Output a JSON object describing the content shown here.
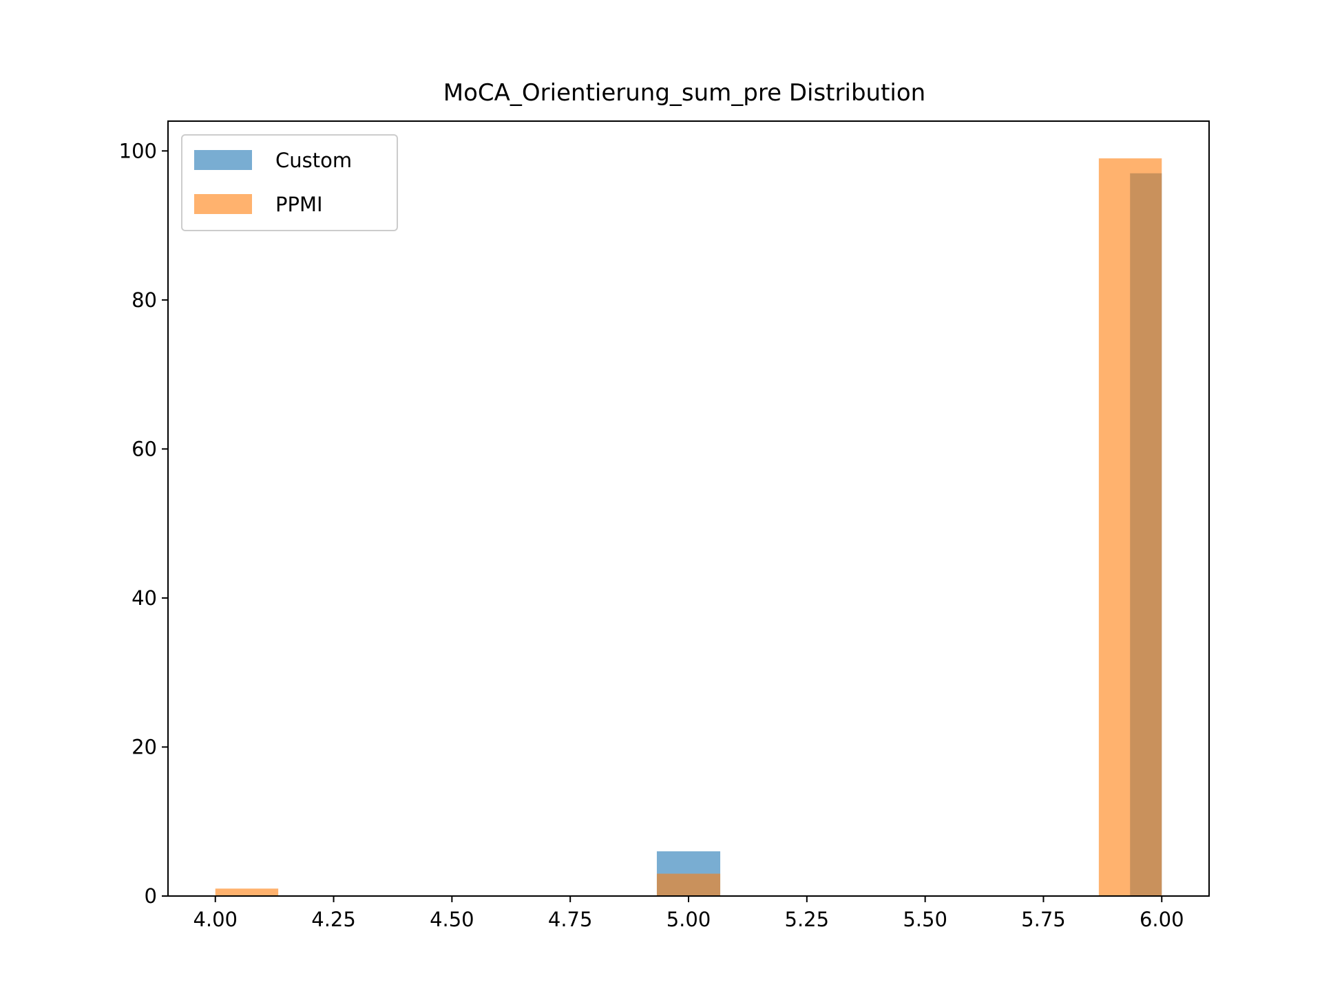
{
  "chart_data": {
    "type": "bar",
    "title": "MoCA_Orientierung_sum_pre Distribution",
    "xlabel": "",
    "ylabel": "",
    "xlim": [
      3.9,
      6.1
    ],
    "ylim": [
      0,
      104
    ],
    "xticks": [
      4.0,
      4.25,
      4.5,
      4.75,
      5.0,
      5.25,
      5.5,
      5.75,
      6.0
    ],
    "xtick_labels": [
      "4.00",
      "4.25",
      "4.50",
      "4.75",
      "5.00",
      "5.25",
      "5.50",
      "5.75",
      "6.00"
    ],
    "yticks": [
      0,
      20,
      40,
      60,
      80,
      100
    ],
    "ytick_labels": [
      "0",
      "20",
      "40",
      "60",
      "80",
      "100"
    ],
    "grid": false,
    "legend_position": "top-left",
    "series": [
      {
        "name": "Custom",
        "color": "#1f77b4",
        "opacity": 0.6,
        "bins": [
          {
            "x0": 4.933,
            "x1": 5.067,
            "count": 6
          },
          {
            "x0": 5.933,
            "x1": 6.0,
            "count": 97
          }
        ]
      },
      {
        "name": "PPMI",
        "color": "#ff7f0e",
        "opacity": 0.6,
        "bins": [
          {
            "x0": 4.0,
            "x1": 4.133,
            "count": 1
          },
          {
            "x0": 4.933,
            "x1": 5.067,
            "count": 3
          },
          {
            "x0": 5.867,
            "x1": 6.0,
            "count": 99
          }
        ]
      }
    ]
  }
}
